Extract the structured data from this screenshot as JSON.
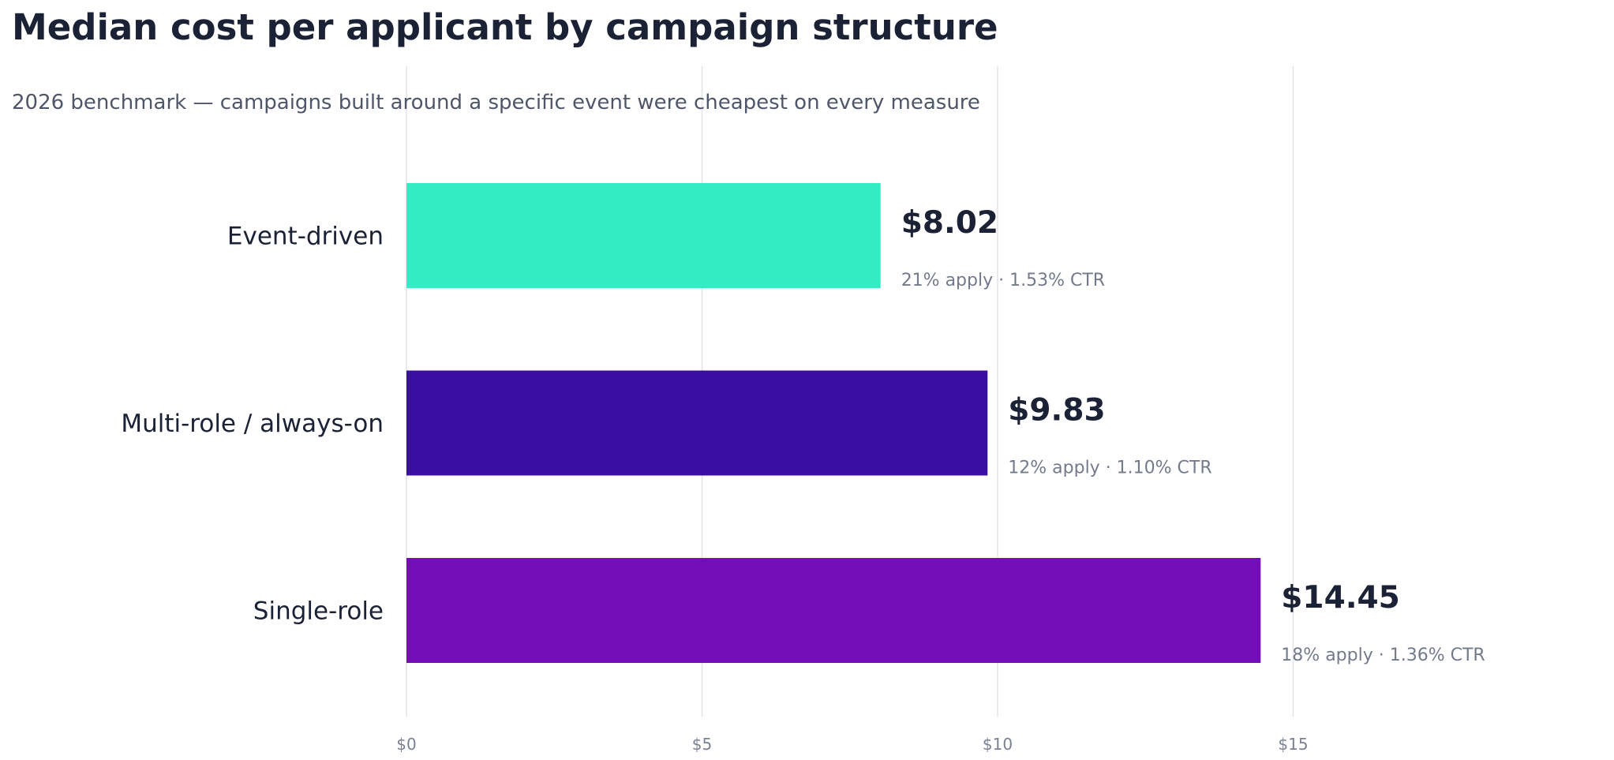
{
  "chart_data": {
    "type": "bar",
    "orientation": "horizontal",
    "title": "Median cost per applicant by campaign structure",
    "subtitle": "2026 benchmark — campaigns built around a specific event were cheapest on every measure",
    "categories": [
      "Event-driven",
      "Multi-role / always-on",
      "Single-role"
    ],
    "values": [
      8.02,
      9.83,
      14.45
    ],
    "value_labels": [
      "$8.02",
      "$9.83",
      "$14.45"
    ],
    "details": [
      "21% apply · 1.53% CTR",
      "12% apply · 1.10% CTR",
      "18% apply · 1.36% CTR"
    ],
    "colors": [
      "#33ecc4",
      "#390ea3",
      "#730cb9"
    ],
    "xlim": [
      0,
      20
    ],
    "x_ticks": [
      0,
      5,
      10,
      15
    ],
    "x_tick_labels": [
      "$0",
      "$5",
      "$10",
      "$15"
    ],
    "xlabel": "",
    "ylabel": "",
    "grid": "vertical",
    "legend": "none"
  }
}
